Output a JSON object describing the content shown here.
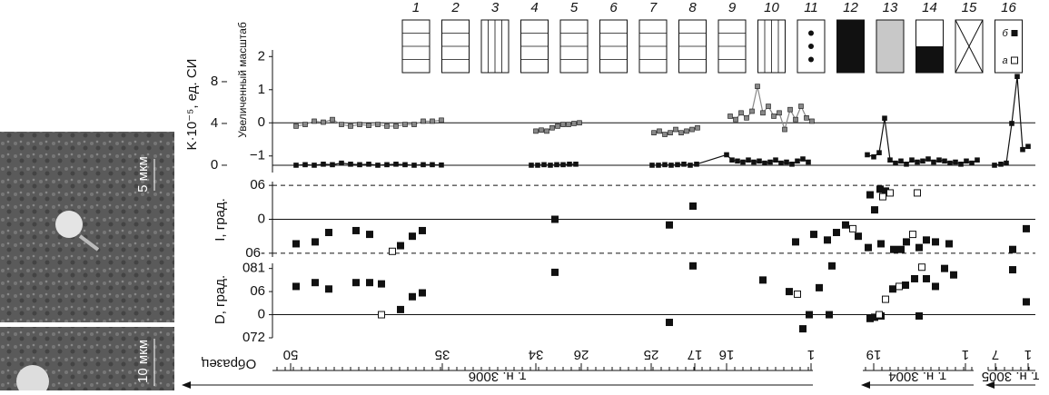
{
  "figure": {
    "photo_scales": [
      "5 мкм",
      "10 мкм"
    ],
    "legend": {
      "labels": [
        "1",
        "2",
        "3",
        "4",
        "5",
        "6",
        "7",
        "8",
        "9",
        "10",
        "11",
        "12",
        "13",
        "14",
        "15",
        "16"
      ],
      "sub": [
        "а",
        "б"
      ]
    },
    "k_panel": {
      "type": "line",
      "ylabel": "K·10⁻⁵, ед. СИ",
      "zoom_label": "Увеличенный масштаб",
      "xlim": [
        200,
        1140
      ],
      "ylim": [
        -1.5,
        2.2
      ],
      "yticks": [
        2,
        1,
        0,
        {
          "value": -1,
          "label": "−1"
        }
      ],
      "y2lim": [
        -0.7,
        11.04
      ],
      "y2ticks": [
        8,
        4,
        0
      ],
      "series": [
        {
          "color": "#888888",
          "x": [
            326,
            336,
            346,
            356,
            366,
            376,
            386,
            396,
            406,
            416,
            426,
            436,
            446,
            456,
            466,
            476,
            486,
            540,
            590,
            596,
            602,
            608,
            614,
            620,
            626,
            632,
            638,
            680,
            720,
            726,
            732,
            738,
            744,
            750,
            756,
            762,
            768,
            790,
            804,
            810,
            816,
            822,
            828,
            834,
            840,
            846,
            852,
            858,
            864,
            870,
            876,
            882,
            888,
            894
          ],
          "values": [
            -0.1,
            -0.05,
            0.05,
            0.02,
            0.1,
            -0.05,
            -0.1,
            -0.05,
            -0.08,
            -0.05,
            -0.1,
            -0.1,
            -0.05,
            -0.05,
            0.05,
            0.05,
            0.08,
            null,
            -0.25,
            -0.22,
            -0.25,
            -0.15,
            -0.1,
            -0.05,
            -0.05,
            -0.02,
            0,
            null,
            -0.3,
            -0.25,
            -0.35,
            -0.3,
            -0.2,
            -0.3,
            -0.25,
            -0.2,
            -0.15,
            null,
            0.2,
            0.1,
            0.3,
            0.15,
            0.35,
            1.1,
            0.3,
            0.5,
            0.2,
            0.3,
            -0.2,
            0.4,
            0.1,
            0.5,
            0.15,
            0.05
          ]
        },
        {
          "color": "#111111",
          "axis": "y2",
          "x": [
            326,
            336,
            346,
            356,
            366,
            376,
            386,
            396,
            406,
            416,
            426,
            436,
            446,
            456,
            466,
            476,
            486,
            540,
            585,
            592,
            599,
            606,
            613,
            620,
            627,
            634,
            680,
            718,
            725,
            732,
            739,
            746,
            753,
            760,
            767,
            800,
            806,
            812,
            818,
            824,
            830,
            836,
            842,
            848,
            854,
            860,
            866,
            872,
            878,
            884,
            890,
            925,
            955,
            962,
            968,
            974,
            980,
            986,
            992,
            998,
            1004,
            1010,
            1016,
            1022,
            1028,
            1034,
            1040,
            1046,
            1052,
            1058,
            1064,
            1070,
            1076,
            1090,
            1095,
            1102,
            1108,
            1114,
            1120,
            1126,
            1132
          ],
          "values": [
            0,
            0.05,
            0,
            0.1,
            0.05,
            0.2,
            0.1,
            0.05,
            0.1,
            0,
            0.05,
            0.1,
            0.05,
            0,
            0.05,
            0.05,
            0.02,
            null,
            0,
            0,
            0.05,
            0,
            0.05,
            0.05,
            0.1,
            0.1,
            null,
            0,
            0,
            0.05,
            0,
            0.05,
            0.1,
            0,
            0.1,
            1.0,
            0.5,
            0.4,
            0.3,
            0.5,
            0.3,
            0.4,
            0.2,
            0.3,
            0.5,
            0.2,
            0.3,
            0.1,
            0.4,
            0.6,
            0.3,
            null,
            1.0,
            0.8,
            1.2,
            4.5,
            0.5,
            0.2,
            0.4,
            0.1,
            0.5,
            0.3,
            0.4,
            0.6,
            0.3,
            0.5,
            0.4,
            0.2,
            0.3,
            0.1,
            0.4,
            0.2,
            0.5,
            null,
            0,
            0.1,
            0.2,
            4,
            8.5,
            1.5,
            1.8
          ]
        }
      ]
    },
    "i_panel": {
      "type": "scatter",
      "ylabel": "I, град.",
      "xlim": [
        200,
        1140
      ],
      "ylim": [
        -100,
        100
      ],
      "yticks": [
        {
          "value": 90,
          "label": "06"
        },
        0,
        {
          "value": -90,
          "label": "06-"
        }
      ],
      "series": [
        {
          "color": "#111111",
          "x": [
            326,
            347,
            362,
            392,
            407,
            441,
            454,
            465,
            611,
            737,
            763,
            876,
            896,
            911,
            921,
            931,
            945,
            956,
            970,
            958,
            963,
            969,
            975,
            984,
            992,
            998,
            1012,
            1020,
            1030,
            1045,
            1115,
            1130
          ],
          "values": [
            -65,
            -60,
            -35,
            -30,
            -40,
            -70,
            -45,
            -30,
            0,
            -15,
            35,
            -60,
            -40,
            -55,
            -35,
            -15,
            -45,
            -75,
            -65,
            65,
            25,
            80,
            75,
            -80,
            -80,
            -60,
            -75,
            -55,
            -60,
            -65,
            -80,
            -25
          ]
        },
        {
          "color": "#ffffff",
          "x": [
            432,
            939,
            972,
            980,
            1005,
            1010
          ],
          "values": [
            -85,
            -25,
            60,
            70,
            -40,
            70
          ]
        }
      ]
    },
    "d_panel": {
      "type": "scatter",
      "ylabel": "D, град.",
      "xlim": [
        200,
        1140
      ],
      "ylim": [
        -90,
        200
      ],
      "yticks": [
        {
          "value": 180,
          "label": "081"
        },
        {
          "value": 90,
          "label": "06"
        },
        0,
        {
          "value": -90,
          "label": "072"
        }
      ],
      "series": [
        {
          "color": "#111111",
          "x": [
            326,
            347,
            362,
            392,
            407,
            420,
            441,
            454,
            465,
            611,
            737,
            763,
            840,
            869,
            884,
            891,
            902,
            913,
            916,
            958,
            963,
            970,
            983,
            997,
            1007,
            1012,
            1020,
            1030,
            1040,
            1050,
            1115,
            1130
          ],
          "values": [
            110,
            125,
            100,
            125,
            125,
            120,
            20,
            70,
            85,
            165,
            -30,
            190,
            135,
            90,
            -55,
            0,
            105,
            0,
            190,
            -15,
            -10,
            -5,
            100,
            115,
            140,
            -5,
            140,
            110,
            180,
            155,
            175,
            50
          ]
        },
        {
          "color": "#ffffff",
          "x": [
            420,
            878,
            968,
            975,
            990,
            1015
          ],
          "values": [
            0,
            80,
            0,
            60,
            110,
            185
          ]
        }
      ]
    },
    "samples": {
      "title": "Образец",
      "labels": [
        "50",
        "35",
        "34",
        "26",
        "25",
        "17",
        "16",
        "1",
        "19",
        "1",
        "7",
        "1"
      ],
      "sections": [
        "т. н. 3006",
        "т. н. 3004",
        "т. н. 3005"
      ]
    }
  }
}
